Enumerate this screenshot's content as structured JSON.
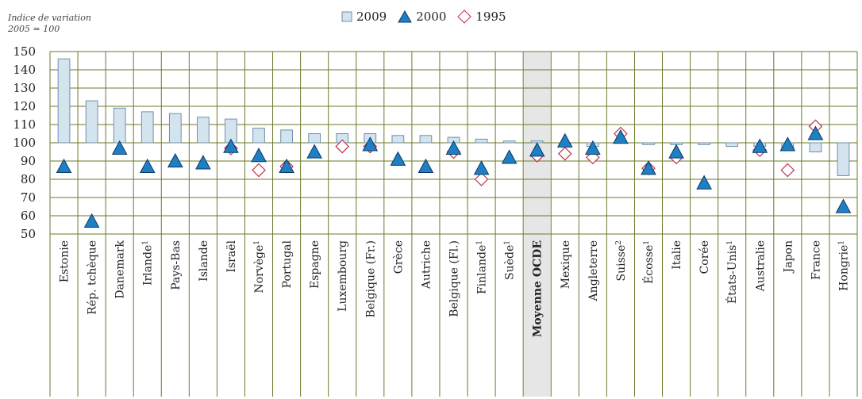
{
  "chart_data": {
    "type": "bar",
    "ylabel_line1": "Indice de variation",
    "ylabel_line2": "2005 = 100",
    "ylim": [
      50,
      150
    ],
    "yticks": [
      50,
      60,
      70,
      80,
      90,
      100,
      110,
      120,
      130,
      140,
      150
    ],
    "baseline": 100,
    "grid": true,
    "legend_position": "top-center",
    "highlight_category": "Moyenne OCDE",
    "colors": {
      "bar_fill": "#d4e4ef",
      "bar_stroke": "#6f8fa8",
      "highlight_fill": "#e6e6e6",
      "gridline": "#6b7a2a",
      "triangle_fill": "#1f7fc4",
      "triangle_stroke": "#0a3a66",
      "diamond_stroke": "#c0304a"
    },
    "categories": [
      {
        "label": "Estonie",
        "sup": ""
      },
      {
        "label": "Rép. tchèque",
        "sup": ""
      },
      {
        "label": "Danemark",
        "sup": ""
      },
      {
        "label": "Irlande",
        "sup": "1"
      },
      {
        "label": "Pays-Bas",
        "sup": ""
      },
      {
        "label": "Islande",
        "sup": ""
      },
      {
        "label": "Israël",
        "sup": ""
      },
      {
        "label": "Norvège",
        "sup": "1"
      },
      {
        "label": "Portugal",
        "sup": ""
      },
      {
        "label": "Espagne",
        "sup": ""
      },
      {
        "label": "Luxembourg",
        "sup": ""
      },
      {
        "label": "Belgique (Fr.)",
        "sup": ""
      },
      {
        "label": "Grèce",
        "sup": ""
      },
      {
        "label": "Autriche",
        "sup": ""
      },
      {
        "label": "Belgique (Fl.)",
        "sup": ""
      },
      {
        "label": "Finlande",
        "sup": "1"
      },
      {
        "label": "Suède",
        "sup": "1"
      },
      {
        "label": "Moyenne OCDE",
        "sup": ""
      },
      {
        "label": "Mexique",
        "sup": ""
      },
      {
        "label": "Angleterre",
        "sup": ""
      },
      {
        "label": "Suisse",
        "sup": "2"
      },
      {
        "label": "Écosse",
        "sup": "1"
      },
      {
        "label": "Italie",
        "sup": ""
      },
      {
        "label": "Corée",
        "sup": ""
      },
      {
        "label": "États-Unis",
        "sup": "1"
      },
      {
        "label": "Australie",
        "sup": ""
      },
      {
        "label": "Japon",
        "sup": ""
      },
      {
        "label": "France",
        "sup": ""
      },
      {
        "label": "Hongrie",
        "sup": "1"
      }
    ],
    "series": [
      {
        "name": "2009",
        "marker": "bar",
        "values": [
          146,
          123,
          119,
          117,
          116,
          114,
          113,
          108,
          107,
          105,
          105,
          105,
          104,
          104,
          103,
          102,
          101,
          101,
          100,
          98,
          101,
          99,
          99,
          99,
          98,
          98,
          96,
          95,
          82
        ]
      },
      {
        "name": "2000",
        "marker": "triangle",
        "values": [
          87,
          57,
          97,
          87,
          90,
          89,
          98,
          93,
          87,
          95,
          null,
          99,
          91,
          87,
          97,
          86,
          92,
          96,
          101,
          97,
          103,
          86,
          95,
          78,
          null,
          98,
          99,
          105,
          65
        ]
      },
      {
        "name": "1995",
        "marker": "diamond",
        "values": [
          null,
          null,
          null,
          null,
          null,
          null,
          97,
          85,
          87,
          null,
          98,
          98,
          null,
          null,
          95,
          80,
          null,
          93,
          94,
          92,
          105,
          86,
          92,
          null,
          null,
          96,
          85,
          109,
          null
        ]
      }
    ]
  }
}
